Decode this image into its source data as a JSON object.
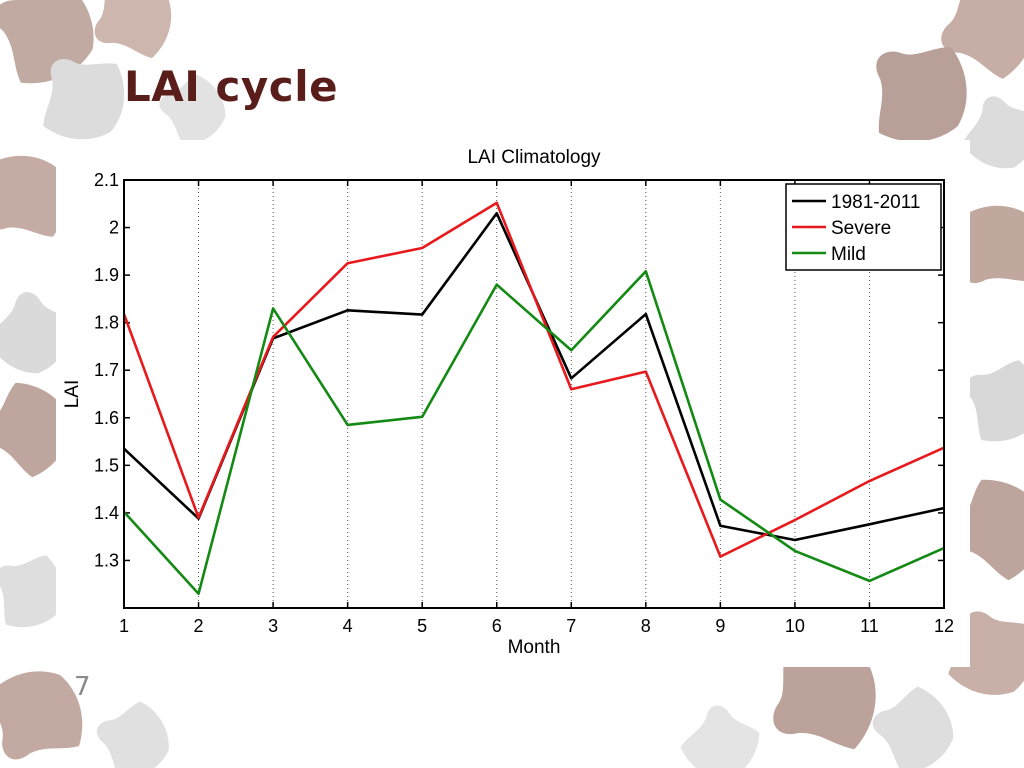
{
  "slide": {
    "title": "LAI cycle",
    "page_number": "7"
  },
  "colors": {
    "title": "#5a1e1a",
    "leaf_dark": "#bfa8a0",
    "leaf_light": "#d9d9d9"
  },
  "chart_data": {
    "type": "line",
    "title": "LAI Climatology",
    "xlabel": "Month",
    "ylabel": "LAI",
    "xlim": [
      1,
      12
    ],
    "ylim": [
      1.2,
      2.1
    ],
    "x": [
      1,
      2,
      3,
      4,
      5,
      6,
      7,
      8,
      9,
      10,
      11,
      12
    ],
    "x_ticks": [
      "1",
      "2",
      "3",
      "4",
      "5",
      "6",
      "7",
      "8",
      "9",
      "10",
      "11",
      "12"
    ],
    "y_ticks": [
      1.3,
      1.4,
      1.5,
      1.6,
      1.7,
      1.8,
      1.9,
      2,
      2.1
    ],
    "y_tick_labels": [
      "1.3",
      "1.4",
      "1.5",
      "1.6",
      "1.7",
      "1.8",
      "1.9",
      "2",
      "2.1"
    ],
    "grid": "vertical dotted",
    "legend_position": "top-right",
    "series": [
      {
        "name": "1981-2011",
        "color": "#000000",
        "values": [
          1.535,
          1.388,
          1.767,
          1.826,
          1.817,
          2.03,
          1.683,
          1.818,
          1.373,
          1.343,
          1.376,
          1.41
        ]
      },
      {
        "name": "Severe",
        "color": "#e8191c",
        "values": [
          1.818,
          1.39,
          1.77,
          1.925,
          1.957,
          2.052,
          1.66,
          1.697,
          1.308,
          1.385,
          1.467,
          1.537
        ]
      },
      {
        "name": "Mild",
        "color": "#148a14",
        "values": [
          1.402,
          1.23,
          1.83,
          1.585,
          1.602,
          1.88,
          1.742,
          1.908,
          1.428,
          1.32,
          1.257,
          1.326
        ]
      }
    ]
  }
}
